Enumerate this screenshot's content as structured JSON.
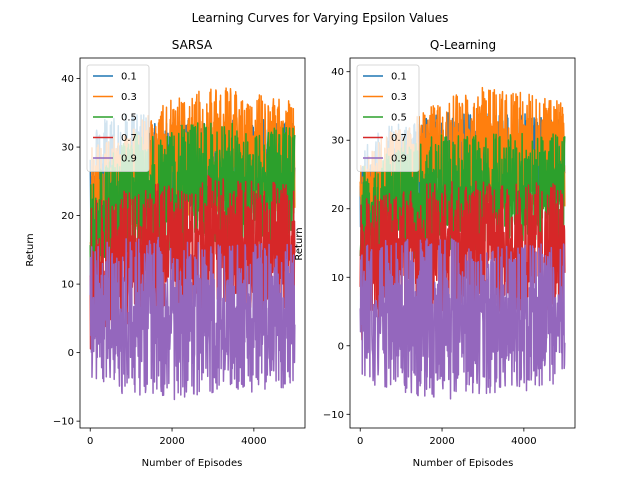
{
  "figure": {
    "suptitle": "Learning Curves for Varying Epsilon Values"
  },
  "chart_data": [
    {
      "type": "line",
      "title": "SARSA",
      "xlabel": "Number of Episodes",
      "ylabel": "Return",
      "xlim": [
        -250,
        5250
      ],
      "ylim": [
        -11,
        43
      ],
      "xticks": [
        0,
        2000,
        4000
      ],
      "xtick_labels": [
        "0",
        "2000",
        "4000"
      ],
      "yticks": [
        -10,
        0,
        10,
        20,
        30,
        40
      ],
      "ytick_labels": [
        "−10",
        "0",
        "10",
        "20",
        "30",
        "40"
      ],
      "grid": false,
      "legend": "top-left",
      "episodes": 5000,
      "series": [
        {
          "name": "0.1",
          "color": "#1f77b4",
          "envelope": [
            [
              0,
              10,
              33
            ],
            [
              300,
              12,
              34
            ],
            [
              1000,
              18,
              35
            ],
            [
              2000,
              20,
              34
            ],
            [
              3000,
              22,
              34
            ],
            [
              4000,
              22,
              34
            ],
            [
              5000,
              22,
              34
            ]
          ]
        },
        {
          "name": "0.3",
          "color": "#ff7f0e",
          "envelope": [
            [
              0,
              10,
              30
            ],
            [
              300,
              14,
              31
            ],
            [
              1000,
              18,
              33
            ],
            [
              2000,
              20,
              37
            ],
            [
              3000,
              20,
              39
            ],
            [
              4000,
              20,
              38
            ],
            [
              5000,
              20,
              37
            ]
          ]
        },
        {
          "name": "0.5",
          "color": "#2ca02c",
          "envelope": [
            [
              0,
              8,
              27
            ],
            [
              300,
              10,
              28
            ],
            [
              1000,
              12,
              32
            ],
            [
              2000,
              14,
              33
            ],
            [
              3000,
              15,
              34
            ],
            [
              4000,
              15,
              33
            ],
            [
              5000,
              15,
              33
            ]
          ]
        },
        {
          "name": "0.7",
          "color": "#d62728",
          "envelope": [
            [
              0,
              0,
              22
            ],
            [
              300,
              2,
              23
            ],
            [
              1000,
              4,
              24
            ],
            [
              2000,
              6,
              25
            ],
            [
              3000,
              6,
              26
            ],
            [
              4000,
              6,
              25
            ],
            [
              5000,
              6,
              25
            ]
          ]
        },
        {
          "name": "0.9",
          "color": "#9467bd",
          "envelope": [
            [
              0,
              -4,
              16
            ],
            [
              300,
              -6,
              16
            ],
            [
              1000,
              -6,
              17
            ],
            [
              2000,
              -7,
              17
            ],
            [
              3000,
              -6,
              16
            ],
            [
              4000,
              -6,
              16
            ],
            [
              5000,
              -6,
              16
            ]
          ]
        }
      ]
    },
    {
      "type": "line",
      "title": "Q-Learning",
      "xlabel": "Number of Episodes",
      "ylabel": "Return",
      "xlim": [
        -250,
        5250
      ],
      "ylim": [
        -12,
        42
      ],
      "xticks": [
        0,
        2000,
        4000
      ],
      "xtick_labels": [
        "0",
        "2000",
        "4000"
      ],
      "yticks": [
        -10,
        0,
        10,
        20,
        30,
        40
      ],
      "ytick_labels": [
        "−10",
        "0",
        "10",
        "20",
        "30",
        "40"
      ],
      "grid": false,
      "legend": "top-left",
      "episodes": 5000,
      "series": [
        {
          "name": "0.1",
          "color": "#1f77b4",
          "envelope": [
            [
              0,
              10,
              30
            ],
            [
              300,
              14,
              31
            ],
            [
              1000,
              20,
              33
            ],
            [
              2000,
              22,
              34
            ],
            [
              3000,
              22,
              34
            ],
            [
              4000,
              22,
              34
            ],
            [
              5000,
              22,
              34
            ]
          ]
        },
        {
          "name": "0.3",
          "color": "#ff7f0e",
          "envelope": [
            [
              0,
              10,
              28
            ],
            [
              300,
              14,
              30
            ],
            [
              1000,
              18,
              32
            ],
            [
              2000,
              20,
              36
            ],
            [
              3000,
              20,
              38
            ],
            [
              4000,
              20,
              37
            ],
            [
              5000,
              20,
              36
            ]
          ]
        },
        {
          "name": "0.5",
          "color": "#2ca02c",
          "envelope": [
            [
              0,
              8,
              26
            ],
            [
              300,
              10,
              27
            ],
            [
              1000,
              12,
              30
            ],
            [
              2000,
              14,
              31
            ],
            [
              3000,
              14,
              31
            ],
            [
              4000,
              14,
              31
            ],
            [
              5000,
              14,
              31
            ]
          ]
        },
        {
          "name": "0.7",
          "color": "#d62728",
          "envelope": [
            [
              0,
              0,
              22
            ],
            [
              300,
              2,
              22
            ],
            [
              1000,
              4,
              23
            ],
            [
              2000,
              5,
              24
            ],
            [
              3000,
              5,
              24
            ],
            [
              4000,
              5,
              24
            ],
            [
              5000,
              5,
              24
            ]
          ]
        },
        {
          "name": "0.9",
          "color": "#9467bd",
          "envelope": [
            [
              0,
              -4,
              15
            ],
            [
              300,
              -6,
              15
            ],
            [
              1000,
              -7,
              16
            ],
            [
              2000,
              -8,
              16
            ],
            [
              3000,
              -7,
              15
            ],
            [
              4000,
              -7,
              15
            ],
            [
              5000,
              -6,
              15
            ]
          ]
        }
      ]
    }
  ]
}
